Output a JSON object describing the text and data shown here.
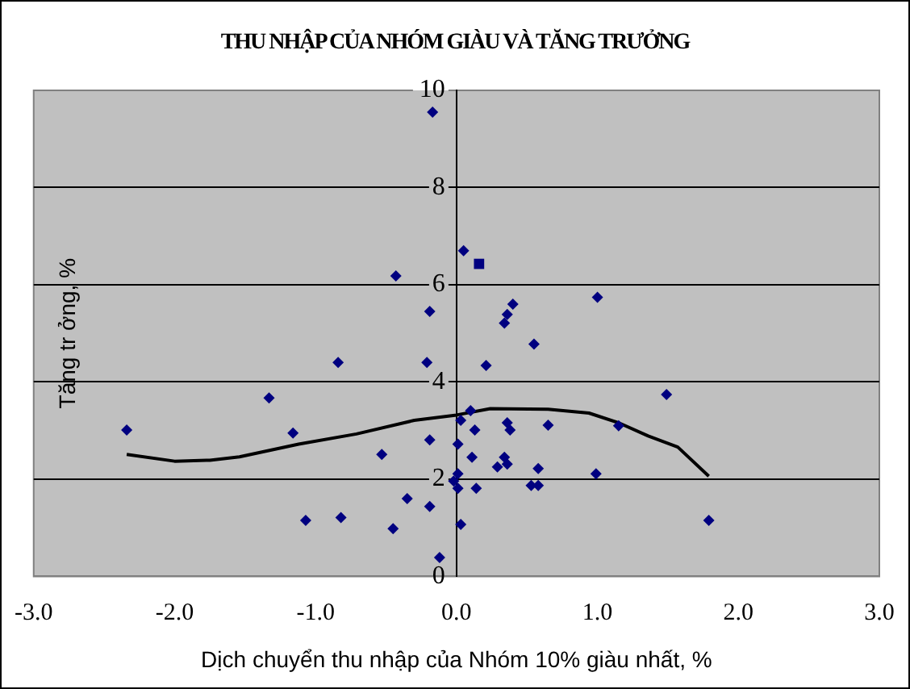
{
  "chart_data": {
    "type": "scatter",
    "title": "THU NHẬP CỦA NHÓM GIÀU VÀ TĂNG TRƯỞNG",
    "xlabel": "Dịch chuyển thu nhập của Nhóm 10% giàu nhất, %",
    "ylabel": "Tăng tr ởng, %",
    "xlim": [
      -3,
      3
    ],
    "xticks": [
      {
        "value": -3,
        "label": "-3.0"
      },
      {
        "value": -2,
        "label": "-2.0"
      },
      {
        "value": -1,
        "label": "-1.0"
      },
      {
        "value": 0,
        "label": "0.0"
      },
      {
        "value": 1,
        "label": "1.0"
      },
      {
        "value": 2,
        "label": "2.0"
      },
      {
        "value": 3,
        "label": "3.0"
      }
    ],
    "ylim": [
      0,
      10
    ],
    "yticks": [
      0,
      2,
      4,
      6,
      8,
      10
    ],
    "grid": "y",
    "series": [
      {
        "type": "scatter",
        "color": "#000080",
        "marker": "diamond",
        "x": [
          -0.17,
          0.05,
          -0.43,
          -0.19,
          -0.21,
          -0.19,
          -0.19,
          -0.12,
          0.4,
          0.36,
          0.34,
          1.0,
          0.55,
          0.21,
          1.49,
          0.1,
          0.03,
          0.13,
          0.36,
          0.38,
          0.65,
          1.15,
          0.01,
          0.11,
          0.34,
          0.36,
          0.29,
          0.58,
          0.99,
          0.01,
          -0.02,
          0.01,
          0.14,
          0.53,
          0.58,
          0.03,
          1.79,
          -2.34,
          -1.33,
          -1.16,
          -0.84,
          -0.82,
          -1.07,
          -0.53,
          -0.35,
          -0.45
        ],
        "values": [
          9.55,
          6.7,
          6.18,
          5.45,
          4.4,
          2.81,
          1.44,
          0.39,
          5.6,
          5.39,
          5.21,
          5.74,
          4.78,
          4.34,
          3.74,
          3.41,
          3.21,
          3.01,
          3.16,
          3.01,
          3.11,
          3.1,
          2.72,
          2.45,
          2.45,
          2.31,
          2.25,
          2.22,
          2.11,
          2.11,
          1.96,
          1.81,
          1.81,
          1.87,
          1.87,
          1.07,
          1.15,
          3.01,
          3.67,
          2.95,
          4.4,
          1.21,
          1.15,
          2.51,
          1.6,
          0.98
        ]
      },
      {
        "type": "scatter",
        "color": "#000080",
        "marker": "square",
        "x": [
          0.16
        ],
        "values": [
          6.43
        ]
      },
      {
        "type": "line",
        "color": "#000000",
        "marker": "none",
        "x": [
          -2.34,
          -2.0,
          -1.75,
          -1.54,
          -1.12,
          -0.71,
          -0.3,
          0.0,
          0.24,
          0.65,
          0.94,
          1.15,
          1.36,
          1.57,
          1.79
        ],
        "values": [
          2.51,
          2.37,
          2.39,
          2.46,
          2.72,
          2.93,
          3.21,
          3.32,
          3.45,
          3.44,
          3.36,
          3.16,
          2.89,
          2.66,
          2.06
        ]
      }
    ]
  }
}
